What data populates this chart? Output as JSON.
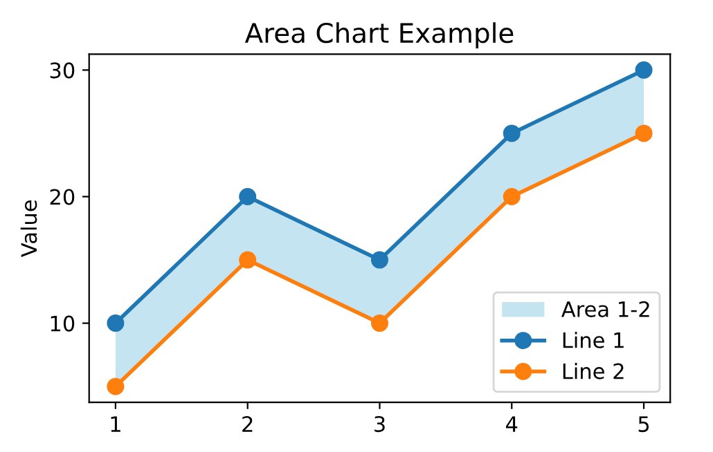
{
  "chart_data": {
    "type": "line",
    "title": "Area Chart Example",
    "ylabel": "Value",
    "x": [
      1,
      2,
      3,
      4,
      5
    ],
    "series": [
      {
        "name": "Area 1-2",
        "type": "area",
        "color": "#c4e4f2",
        "values": [
          null,
          null,
          null,
          null,
          null
        ],
        "lower": [
          5,
          15,
          10,
          20,
          25
        ],
        "upper": [
          10,
          20,
          15,
          25,
          30
        ]
      },
      {
        "name": "Line 1",
        "color": "#1f77b4",
        "marker": "circle",
        "values": [
          10,
          20,
          15,
          25,
          30
        ]
      },
      {
        "name": "Line 2",
        "color": "#ff7f0e",
        "marker": "circle",
        "values": [
          5,
          15,
          10,
          20,
          25
        ]
      }
    ],
    "xlim": [
      0.8,
      5.2
    ],
    "xticks": [
      1,
      2,
      3,
      4,
      5
    ],
    "ylim": [
      3.75,
      31.25
    ],
    "yticks": [
      10,
      20,
      30
    ],
    "legend": "lower right",
    "grid": false
  }
}
